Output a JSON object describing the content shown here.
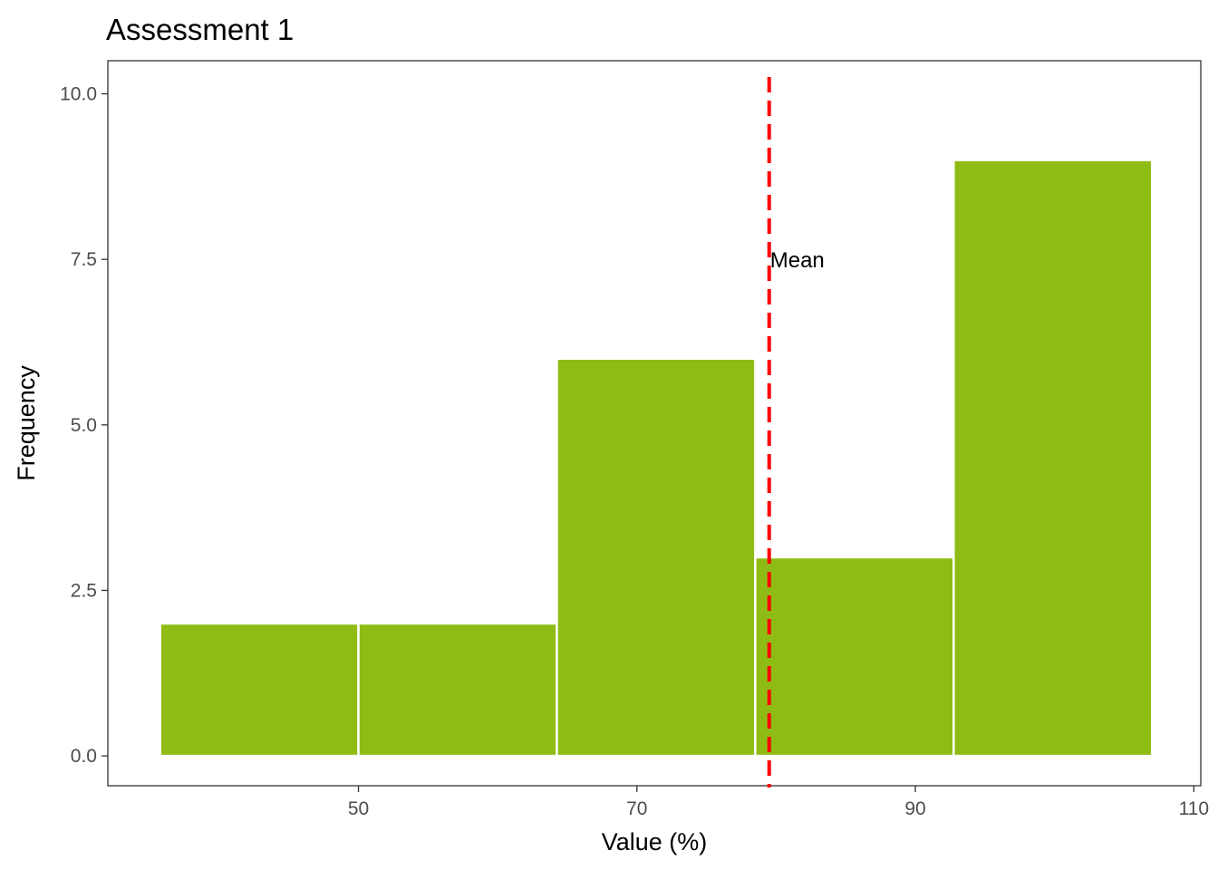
{
  "chart_data": {
    "type": "bar",
    "title": "Assessment 1",
    "xlabel": "Value (%)",
    "ylabel": "Frequency",
    "bins": [
      {
        "start": 35.75,
        "end": 50.0,
        "count": 2
      },
      {
        "start": 50.0,
        "end": 64.25,
        "count": 2
      },
      {
        "start": 64.25,
        "end": 78.5,
        "count": 6
      },
      {
        "start": 78.5,
        "end": 92.75,
        "count": 3
      },
      {
        "start": 92.75,
        "end": 107.0,
        "count": 9
      }
    ],
    "xlim": [
      32.0,
      110.5
    ],
    "ylim": [
      -0.45,
      10.5
    ],
    "x_ticks": [
      50,
      70,
      90,
      110
    ],
    "x_tick_labels": [
      "50",
      "70",
      "90",
      "110"
    ],
    "y_ticks": [
      0,
      2.5,
      5,
      7.5,
      10
    ],
    "y_tick_labels": [
      "0.0",
      "2.5",
      "5.0",
      "7.5",
      "10.0"
    ],
    "mean_line": {
      "x": 79.5,
      "label": "Mean",
      "label_y": 7.5,
      "color": "#ff0000"
    },
    "bar_color": "#8fbc14",
    "grid": false,
    "legend": "none"
  }
}
